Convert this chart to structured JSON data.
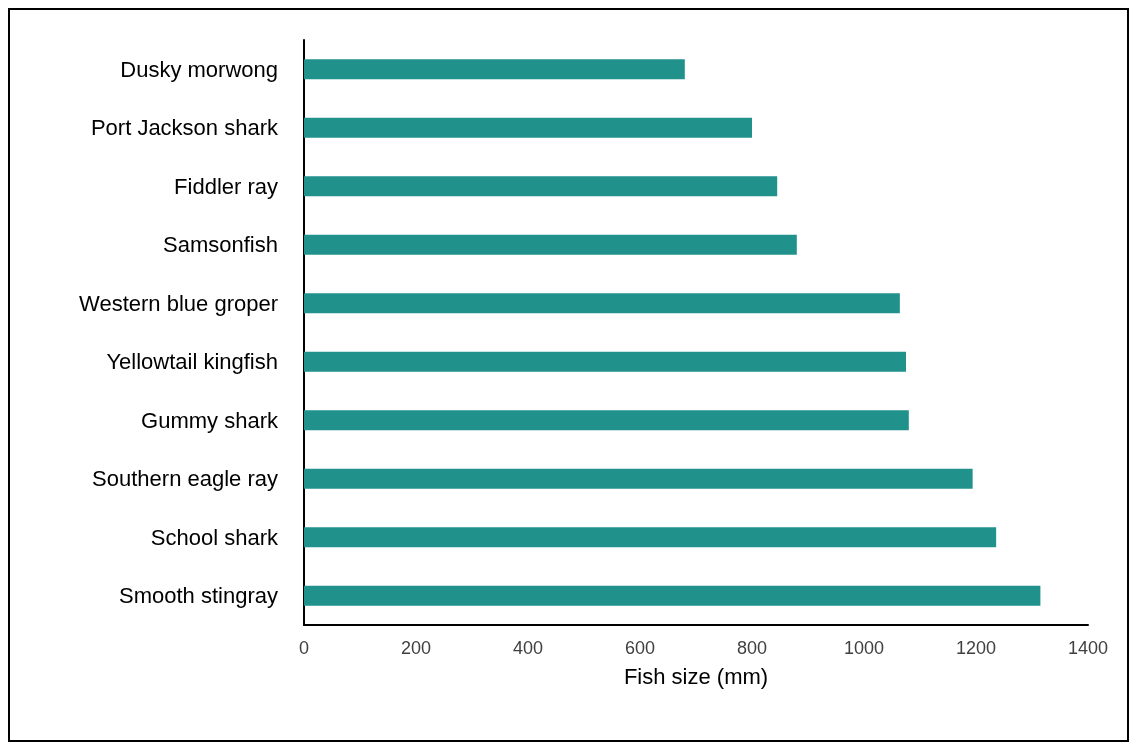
{
  "chart_data": {
    "type": "bar",
    "orientation": "horizontal",
    "xlabel": "Fish size (mm)",
    "categories": [
      "Dusky morwong",
      "Port Jackson shark",
      "Fiddler ray",
      "Samsonfish",
      "Western blue groper",
      "Yellowtail kingfish",
      "Gummy shark",
      "Southern eagle ray",
      "School shark",
      "Smooth stingray"
    ],
    "values": [
      680,
      800,
      845,
      880,
      1064,
      1075,
      1080,
      1194,
      1236,
      1315
    ],
    "color": "#21918c",
    "xlim": [
      0,
      1400
    ],
    "xticks": [
      0,
      200,
      400,
      600,
      800,
      1000,
      1200,
      1400
    ],
    "grid": false
  }
}
